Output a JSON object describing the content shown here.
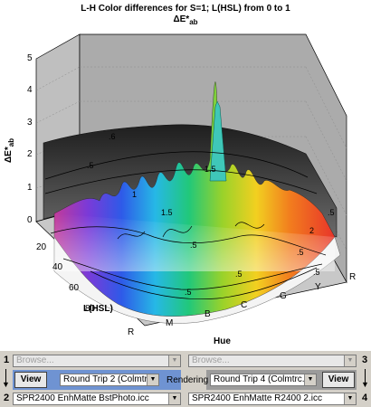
{
  "plot": {
    "title_line1": "L-H Color differences for S=1; L(HSL) from 0 to 1",
    "title_line2": "ΔE*",
    "title_sub": "ab",
    "z_label": "ΔE*",
    "z_label_sub": "ab",
    "x_label": "L(HSL)",
    "y_label": "Hue",
    "z_ticks": [
      "5",
      "4",
      "3",
      "2",
      "1",
      "0"
    ],
    "l_ticks": [
      "20",
      "40",
      "60",
      "80"
    ],
    "hue_ticks": [
      "R",
      "M",
      "B",
      "C",
      "G",
      "Y",
      "R"
    ],
    "contour_labels": [
      ".6",
      ".5",
      "1.5",
      "1",
      "1.5",
      ".5",
      ".5",
      ".5",
      "2",
      ".5",
      ".5",
      ".5"
    ]
  },
  "controls": {
    "row1_num_left": "1",
    "row1_num_right": "3",
    "row2_num_left": "2",
    "row2_num_right": "4",
    "browse_left": "Browse...",
    "browse_right": "Browse...",
    "view_left": "View",
    "view_right": "View",
    "combo_left": "Round Trip 2 (Colmtrc.)",
    "rendering_label": "Rendering",
    "combo_right": "Round Trip 4 (Colmtrc.)",
    "file_left": "SPR2400 EnhMatte BstPhoto.icc",
    "file_right": "SPR2400 EnhMatte R2400 2.icc"
  },
  "colors": {
    "panel_blue": "#6f93d2",
    "panel_gray": "#9b9b9b",
    "surface_dark": "#3a3a3a"
  }
}
